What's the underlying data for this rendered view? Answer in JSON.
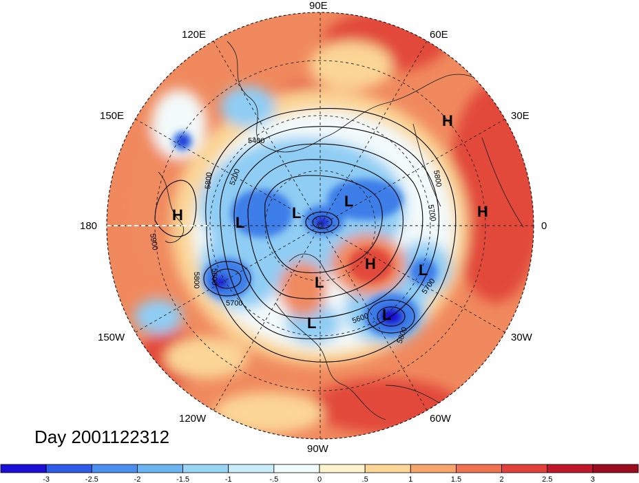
{
  "title": "Day 2001122312",
  "longitude_labels": [
    "90E",
    "60E",
    "30E",
    "0",
    "30W",
    "60W",
    "90W",
    "120W",
    "150W",
    "180",
    "150E",
    "120E"
  ],
  "contour_labels": [
    "5400",
    "5200",
    "5800",
    "5900",
    "5700",
    "5600",
    "5800",
    "5700",
    "5600",
    "5800",
    "5700",
    "5800"
  ],
  "systems": [
    "H",
    "H",
    "H",
    "L",
    "L",
    "L",
    "L",
    "L",
    "H",
    "L",
    "L"
  ],
  "colorbar": {
    "tick_labels": [
      "-3",
      "-2.5",
      "-2",
      "-1.5",
      "-1",
      "-.5",
      "0",
      ".5",
      "1",
      "1.5",
      "2",
      "2.5",
      "3"
    ],
    "colors": [
      "#1a0fd6",
      "#2f5be8",
      "#4a8ff0",
      "#6bb4f2",
      "#99d6f6",
      "#c9ecfa",
      "#f0fbfb",
      "#fdf3cc",
      "#fbd696",
      "#f6a66c",
      "#ef7350",
      "#e2403a",
      "#c0182a",
      "#9a0c1e"
    ]
  },
  "palette": {
    "strong_warm": "#e24a3a",
    "warm": "#f08a5e",
    "mild_warm": "#fbd696",
    "neutral": "#f3fafa",
    "cool": "#8fcdf4",
    "cold": "#3e7ee8",
    "very_cold": "#1a0fd6"
  }
}
